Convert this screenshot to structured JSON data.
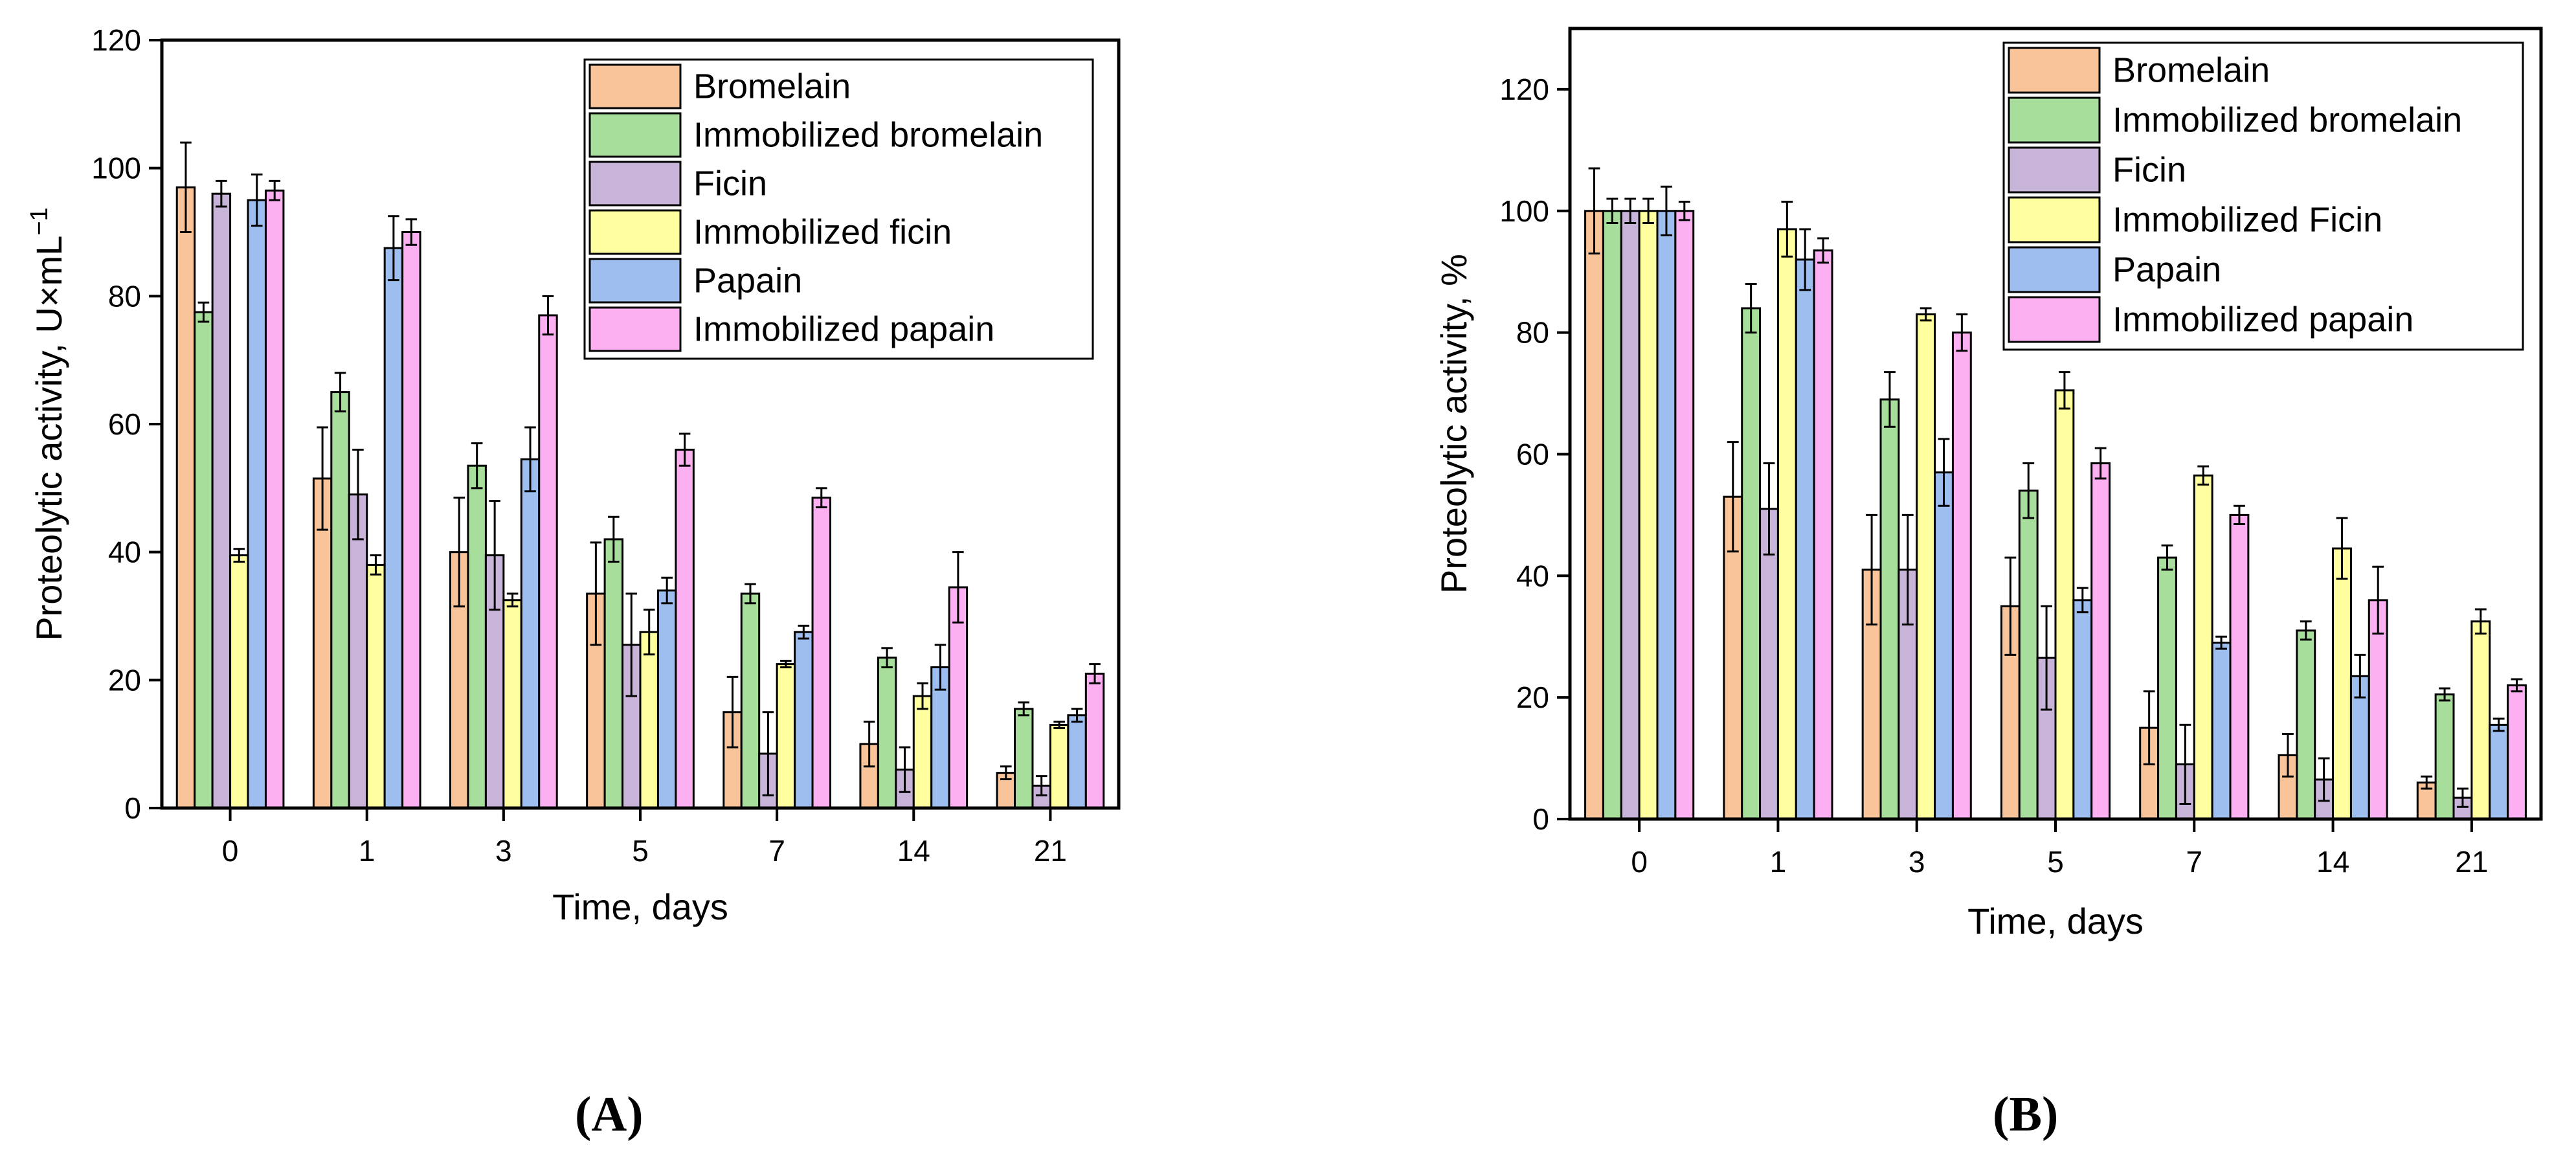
{
  "chart_data": [
    {
      "type": "bar",
      "panel_label": "A",
      "xlabel": "Time, days",
      "ylabel_main": "Proteolytic activity, U×mL",
      "ylabel_sup": "−1",
      "ylim": [
        0,
        120
      ],
      "yticks": [
        0,
        20,
        40,
        60,
        80,
        100,
        120
      ],
      "categories": [
        "0",
        "1",
        "3",
        "5",
        "7",
        "14",
        "21"
      ],
      "legend_position": "top-right",
      "series": [
        {
          "name": "Bromelain",
          "color": "#F9C49A",
          "values": [
            97,
            51.5,
            40,
            33.5,
            15,
            10,
            5.5
          ],
          "errors": [
            7,
            8,
            8.5,
            8,
            5.5,
            3.5,
            1
          ]
        },
        {
          "name": "Immobilized bromelain",
          "color": "#A8DE9C",
          "values": [
            77.5,
            65,
            53.5,
            42,
            33.5,
            23.5,
            15.5
          ],
          "errors": [
            1.5,
            3,
            3.5,
            3.5,
            1.5,
            1.5,
            1
          ]
        },
        {
          "name": "Ficin",
          "color": "#C8B4D8",
          "values": [
            96,
            49,
            39.5,
            25.5,
            8.5,
            6,
            3.5
          ],
          "errors": [
            2,
            7,
            8.5,
            8,
            6.5,
            3.5,
            1.5
          ]
        },
        {
          "name": "Immobilized ficin",
          "color": "#FFFFA0",
          "values": [
            39.5,
            38,
            32.5,
            27.5,
            22.5,
            17.5,
            13
          ],
          "errors": [
            1,
            1.5,
            1,
            3.5,
            0.5,
            2,
            0.5
          ]
        },
        {
          "name": "Papain",
          "color": "#9EBEF0",
          "values": [
            95,
            87.5,
            54.5,
            34,
            27.5,
            22,
            14.5
          ],
          "errors": [
            4,
            5,
            5,
            2,
            1,
            3.5,
            1
          ]
        },
        {
          "name": "Immobilized papain",
          "color": "#FCB0F2",
          "values": [
            96.5,
            90,
            77,
            56,
            48.5,
            34.5,
            21
          ],
          "errors": [
            1.5,
            2,
            3,
            2.5,
            1.5,
            5.5,
            1.5
          ]
        }
      ]
    },
    {
      "type": "bar",
      "panel_label": "B",
      "xlabel": "Time, days",
      "ylabel_main": "Proteolytic activity, %",
      "ylabel_sup": "",
      "ylim": [
        0,
        130
      ],
      "yticks": [
        0,
        20,
        40,
        60,
        80,
        100,
        120
      ],
      "categories": [
        "0",
        "1",
        "3",
        "5",
        "7",
        "14",
        "21"
      ],
      "legend_position": "top-right",
      "series": [
        {
          "name": "Bromelain",
          "color": "#F9C49A",
          "values": [
            100,
            53,
            41,
            35,
            15,
            10.5,
            6
          ],
          "errors": [
            7,
            9,
            9,
            8,
            6,
            3.5,
            1
          ]
        },
        {
          "name": "Immobilized bromelain",
          "color": "#A8DE9C",
          "values": [
            100,
            84,
            69,
            54,
            43,
            31,
            20.5
          ],
          "errors": [
            2,
            4,
            4.5,
            4.5,
            2,
            1.5,
            1
          ]
        },
        {
          "name": "Ficin",
          "color": "#C8B4D8",
          "values": [
            100,
            51,
            41,
            26.5,
            9,
            6.5,
            3.5
          ],
          "errors": [
            2,
            7.5,
            9,
            8.5,
            6.5,
            3.5,
            1.5
          ]
        },
        {
          "name": "Immobilized Ficin",
          "color": "#FFFFA0",
          "values": [
            100,
            97,
            83,
            70.5,
            56.5,
            44.5,
            32.5
          ],
          "errors": [
            2,
            4.5,
            1,
            3,
            1.5,
            5,
            2
          ]
        },
        {
          "name": "Papain",
          "color": "#9EBEF0",
          "values": [
            100,
            92,
            57,
            36,
            29,
            23.5,
            15.5
          ],
          "errors": [
            4,
            5,
            5.5,
            2,
            1,
            3.5,
            1
          ]
        },
        {
          "name": "Immobilized papain",
          "color": "#FCB0F2",
          "values": [
            100,
            93.5,
            80,
            58.5,
            50,
            36,
            22
          ],
          "errors": [
            1.5,
            2,
            3,
            2.5,
            1.5,
            5.5,
            1
          ]
        }
      ]
    }
  ]
}
